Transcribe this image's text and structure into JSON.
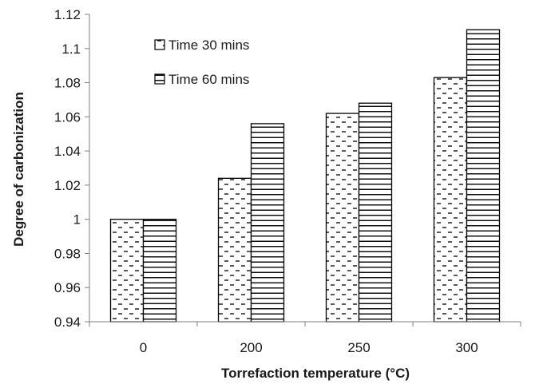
{
  "chart_data": {
    "type": "bar",
    "title": "",
    "xlabel": "Torrefaction temperature (°C)",
    "ylabel": "Degree of carbonization",
    "categories": [
      "0",
      "200",
      "250",
      "300"
    ],
    "series": [
      {
        "name": "Time 30 mins",
        "values": [
          1.0,
          1.024,
          1.062,
          1.083
        ],
        "pattern": "dashes"
      },
      {
        "name": "Time 60 mins",
        "values": [
          1.0,
          1.056,
          1.068,
          1.111
        ],
        "pattern": "horizontal-lines"
      }
    ],
    "ylim": [
      0.94,
      1.12
    ],
    "yticks": [
      "0.94",
      "0.96",
      "0.98",
      "1",
      "1.02",
      "1.04",
      "1.06",
      "1.08",
      "1.1",
      "1.12"
    ],
    "grid": false,
    "legend_position": "top-left",
    "colors": {
      "stroke": "#000000",
      "axis": "#7f7f7f",
      "fill": "#ffffff"
    }
  }
}
